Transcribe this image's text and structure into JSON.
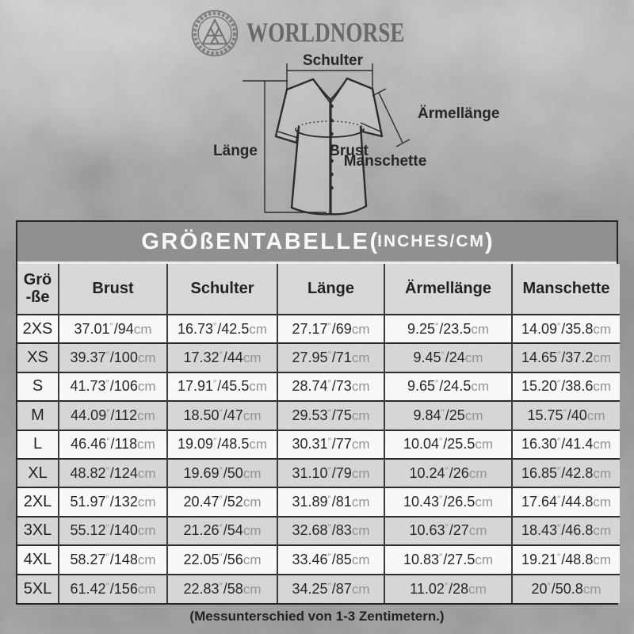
{
  "brand": {
    "name": "WORLDNORSE"
  },
  "diagram": {
    "labels": {
      "schulter": "Schulter",
      "aermellaenge": "Ärmellänge",
      "laenge": "Länge",
      "brust": "Brust",
      "manschette": "Manschette"
    }
  },
  "table": {
    "title": {
      "main": "GRÖßENTABELLE",
      "open": "(",
      "sub": "INCHES/CM",
      "close": ")"
    },
    "size_col": {
      "line1": "Grö",
      "line2": "-ße"
    },
    "columns": [
      "Brust",
      "Schulter",
      "Länge",
      "Ärmellänge",
      "Manschette"
    ],
    "rows": [
      {
        "size": "2XS",
        "cells": [
          {
            "in": "37.01",
            "cm": "94"
          },
          {
            "in": "16.73",
            "cm": "42.5"
          },
          {
            "in": "27.17",
            "cm": "69"
          },
          {
            "in": "9.25",
            "cm": "23.5"
          },
          {
            "in": "14.09",
            "cm": "35.8"
          }
        ]
      },
      {
        "size": "XS",
        "cells": [
          {
            "in": "39.37",
            "cm": "100"
          },
          {
            "in": "17.32",
            "cm": "44"
          },
          {
            "in": "27.95",
            "cm": "71"
          },
          {
            "in": "9.45",
            "cm": "24"
          },
          {
            "in": "14.65",
            "cm": "37.2"
          }
        ]
      },
      {
        "size": "S",
        "cells": [
          {
            "in": "41.73",
            "cm": "106"
          },
          {
            "in": "17.91",
            "cm": "45.5"
          },
          {
            "in": "28.74",
            "cm": "73"
          },
          {
            "in": "9.65",
            "cm": "24.5"
          },
          {
            "in": "15.20",
            "cm": "38.6"
          }
        ]
      },
      {
        "size": "M",
        "cells": [
          {
            "in": "44.09",
            "cm": "112"
          },
          {
            "in": "18.50",
            "cm": "47"
          },
          {
            "in": "29.53",
            "cm": "75"
          },
          {
            "in": "9.84",
            "cm": "25"
          },
          {
            "in": "15.75",
            "cm": "40"
          }
        ]
      },
      {
        "size": "L",
        "cells": [
          {
            "in": "46.46",
            "cm": "118"
          },
          {
            "in": "19.09",
            "cm": "48.5"
          },
          {
            "in": "30.31",
            "cm": "77"
          },
          {
            "in": "10.04",
            "cm": "25.5"
          },
          {
            "in": "16.30",
            "cm": "41.4"
          }
        ]
      },
      {
        "size": "XL",
        "cells": [
          {
            "in": "48.82",
            "cm": "124"
          },
          {
            "in": "19.69",
            "cm": "50"
          },
          {
            "in": "31.10",
            "cm": "79"
          },
          {
            "in": "10.24",
            "cm": "26"
          },
          {
            "in": "16.85",
            "cm": "42.8"
          }
        ]
      },
      {
        "size": "2XL",
        "cells": [
          {
            "in": "51.97",
            "cm": "132"
          },
          {
            "in": "20.47",
            "cm": "52"
          },
          {
            "in": "31.89",
            "cm": "81"
          },
          {
            "in": "10.43",
            "cm": "26.5"
          },
          {
            "in": "17.64",
            "cm": "44.8"
          }
        ]
      },
      {
        "size": "3XL",
        "cells": [
          {
            "in": "55.12",
            "cm": "140"
          },
          {
            "in": "21.26",
            "cm": "54"
          },
          {
            "in": "32.68",
            "cm": "83"
          },
          {
            "in": "10.63",
            "cm": "27"
          },
          {
            "in": "18.43",
            "cm": "46.8"
          }
        ]
      },
      {
        "size": "4XL",
        "cells": [
          {
            "in": "58.27",
            "cm": "148"
          },
          {
            "in": "22.05",
            "cm": "56"
          },
          {
            "in": "33.46",
            "cm": "85"
          },
          {
            "in": "10.83",
            "cm": "27.5"
          },
          {
            "in": "19.21",
            "cm": "48.8"
          }
        ]
      },
      {
        "size": "5XL",
        "cells": [
          {
            "in": "61.42",
            "cm": "156"
          },
          {
            "in": "22.83",
            "cm": "58"
          },
          {
            "in": "34.25",
            "cm": "87"
          },
          {
            "in": "11.02",
            "cm": "28"
          },
          {
            "in": "20",
            "cm": "50.8"
          }
        ]
      }
    ]
  },
  "units": {
    "inch_mark": "″",
    "slash": "/",
    "cm": "cm"
  },
  "footer": {
    "note": "(Messunterschied von 1-3 Zentimetern.)"
  },
  "colors": {
    "title_band": "#8b8b8b",
    "row_shade": "#d9d9d9",
    "row_plain": "#ffffff",
    "unit_gray": "#8e8e8e",
    "line_dark": "#1c1c1c"
  }
}
